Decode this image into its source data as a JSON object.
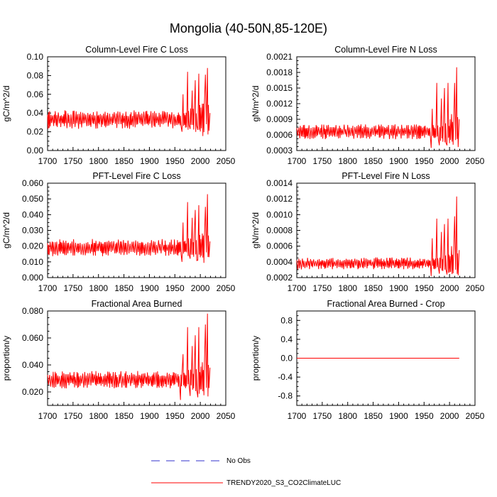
{
  "figure": {
    "title": "Mongolia (40-50N,85-120E)"
  },
  "legend": {
    "entries": [
      {
        "label": "No Obs",
        "color": "#3333cc",
        "dash": "dashed"
      },
      {
        "label": "TRENDY2020_S3_CO2ClimateLUC",
        "color": "#ff0000",
        "dash": "solid"
      }
    ]
  },
  "chart_data": [
    {
      "type": "line",
      "title": "Column-Level Fire C Loss",
      "ylabel": "gC/m^2/d",
      "xlim": [
        1700,
        2050
      ],
      "ylim": [
        0.0,
        0.1
      ],
      "xticks": [
        "1700",
        "1750",
        "1800",
        "1850",
        "1900",
        "1950",
        "2000",
        "2050"
      ],
      "yticks": [
        "0.00",
        "0.02",
        "0.04",
        "0.06",
        "0.08",
        "0.10"
      ],
      "series": [
        {
          "name": "TRENDY2020_S3_CO2ClimateLUC",
          "color": "#ff0000",
          "x_start": 1700,
          "x_end": 2019,
          "baseline": 0.033,
          "amplitude": 0.009,
          "late_peaks": [
            [
              1966,
              0.06
            ],
            [
              1975,
              0.084
            ],
            [
              1984,
              0.064
            ],
            [
              1990,
              0.075
            ],
            [
              1997,
              0.082
            ],
            [
              2004,
              0.05
            ],
            [
              2010,
              0.081
            ],
            [
              2014,
              0.088
            ],
            [
              2019,
              0.04
            ]
          ],
          "late_lows": [
            [
              1964,
              0.02
            ],
            [
              1980,
              0.023
            ],
            [
              1995,
              0.022
            ],
            [
              2012,
              0.028
            ]
          ]
        }
      ]
    },
    {
      "type": "line",
      "title": "Column-Level Fire N Loss",
      "ylabel": "gN/m^2/d",
      "xlim": [
        1700,
        2050
      ],
      "ylim": [
        0.0003,
        0.0021
      ],
      "xticks": [
        "1700",
        "1750",
        "1800",
        "1850",
        "1900",
        "1950",
        "2000",
        "2050"
      ],
      "yticks": [
        "0.0003",
        "0.0006",
        "0.0009",
        "0.0012",
        "0.0015",
        "0.0018",
        "0.0021"
      ],
      "series": [
        {
          "name": "TRENDY2020_S3_CO2ClimateLUC",
          "color": "#ff0000",
          "x_start": 1700,
          "x_end": 2019,
          "baseline": 0.00066,
          "amplitude": 0.00013,
          "late_peaks": [
            [
              1966,
              0.0011
            ],
            [
              1975,
              0.0016
            ],
            [
              1984,
              0.0013
            ],
            [
              1990,
              0.0015
            ],
            [
              1997,
              0.0016
            ],
            [
              2004,
              0.001
            ],
            [
              2010,
              0.0016
            ],
            [
              2014,
              0.0019
            ],
            [
              2019,
              0.0009
            ]
          ],
          "late_lows": [
            [
              1964,
              0.00035
            ],
            [
              1980,
              0.0004
            ],
            [
              1995,
              0.0004
            ],
            [
              2012,
              0.0005
            ]
          ]
        }
      ]
    },
    {
      "type": "line",
      "title": "PFT-Level Fire C Loss",
      "ylabel": "gC/m^2/d",
      "xlim": [
        1700,
        2050
      ],
      "ylim": [
        0.0,
        0.06
      ],
      "xticks": [
        "1700",
        "1750",
        "1800",
        "1850",
        "1900",
        "1950",
        "2000",
        "2050"
      ],
      "yticks": [
        "0.000",
        "0.010",
        "0.020",
        "0.030",
        "0.040",
        "0.050",
        "0.060"
      ],
      "series": [
        {
          "name": "TRENDY2020_S3_CO2ClimateLUC",
          "color": "#ff0000",
          "x_start": 1700,
          "x_end": 2019,
          "baseline": 0.019,
          "amplitude": 0.005,
          "late_peaks": [
            [
              1966,
              0.035
            ],
            [
              1975,
              0.048
            ],
            [
              1984,
              0.038
            ],
            [
              1990,
              0.043
            ],
            [
              1997,
              0.046
            ],
            [
              2004,
              0.028
            ],
            [
              2010,
              0.045
            ],
            [
              2014,
              0.053
            ],
            [
              2019,
              0.023
            ]
          ],
          "late_lows": [
            [
              1964,
              0.01
            ],
            [
              1980,
              0.012
            ],
            [
              1995,
              0.011
            ],
            [
              2012,
              0.016
            ]
          ]
        }
      ]
    },
    {
      "type": "line",
      "title": "PFT-Level Fire N Loss",
      "ylabel": "gN/m^2/d",
      "xlim": [
        1700,
        2050
      ],
      "ylim": [
        0.0002,
        0.0014
      ],
      "xticks": [
        "1700",
        "1750",
        "1800",
        "1850",
        "1900",
        "1950",
        "2000",
        "2050"
      ],
      "yticks": [
        "0.0002",
        "0.0004",
        "0.0006",
        "0.0008",
        "0.0010",
        "0.0012",
        "0.0014"
      ],
      "series": [
        {
          "name": "TRENDY2020_S3_CO2ClimateLUC",
          "color": "#ff0000",
          "x_start": 1700,
          "x_end": 2019,
          "baseline": 0.00038,
          "amplitude": 7e-05,
          "late_peaks": [
            [
              1966,
              0.0007
            ],
            [
              1975,
              0.00095
            ],
            [
              1984,
              0.00078
            ],
            [
              1990,
              0.00088
            ],
            [
              1997,
              0.00095
            ],
            [
              2004,
              0.0006
            ],
            [
              2010,
              0.00098
            ],
            [
              2014,
              0.00123
            ],
            [
              2019,
              0.00055
            ]
          ],
          "late_lows": [
            [
              1964,
              0.00022
            ],
            [
              1980,
              0.00025
            ],
            [
              1995,
              0.00024
            ],
            [
              2012,
              0.0003
            ]
          ]
        }
      ]
    },
    {
      "type": "line",
      "title": "Fractional Area Burned",
      "ylabel": "proportion/y",
      "xlim": [
        1700,
        2050
      ],
      "ylim": [
        0.01,
        0.08
      ],
      "xticks": [
        "1700",
        "1750",
        "1800",
        "1850",
        "1900",
        "1950",
        "2000",
        "2050"
      ],
      "yticks": [
        "0.020",
        "0.040",
        "0.060",
        "0.080"
      ],
      "ytick_values": [
        0.02,
        0.04,
        0.06,
        0.08
      ],
      "series": [
        {
          "name": "TRENDY2020_S3_CO2ClimateLUC",
          "color": "#ff0000",
          "x_start": 1700,
          "x_end": 2019,
          "baseline": 0.029,
          "amplitude": 0.006,
          "late_peaks": [
            [
              1966,
              0.048
            ],
            [
              1975,
              0.068
            ],
            [
              1984,
              0.054
            ],
            [
              1990,
              0.062
            ],
            [
              1997,
              0.068
            ],
            [
              2004,
              0.042
            ],
            [
              2010,
              0.07
            ],
            [
              2014,
              0.078
            ],
            [
              2019,
              0.038
            ]
          ],
          "late_lows": [
            [
              1961,
              0.014
            ],
            [
              1980,
              0.017
            ],
            [
              1995,
              0.016
            ],
            [
              2012,
              0.023
            ]
          ]
        }
      ]
    },
    {
      "type": "line",
      "title": "Fractional Area Burned - Crop",
      "ylabel": "proportion/y",
      "xlim": [
        1700,
        2050
      ],
      "ylim": [
        -1.0,
        1.0
      ],
      "xticks": [
        "1700",
        "1750",
        "1800",
        "1850",
        "1900",
        "1950",
        "2000",
        "2050"
      ],
      "yticks": [
        "-0.8",
        "-0.4",
        "0.0",
        "0.4",
        "0.8"
      ],
      "ytick_values": [
        -0.8,
        -0.4,
        0.0,
        0.4,
        0.8
      ],
      "series": [
        {
          "name": "TRENDY2020_S3_CO2ClimateLUC",
          "color": "#ff0000",
          "x_start": 1700,
          "x_end": 2019,
          "constant": 0.0
        }
      ]
    }
  ]
}
